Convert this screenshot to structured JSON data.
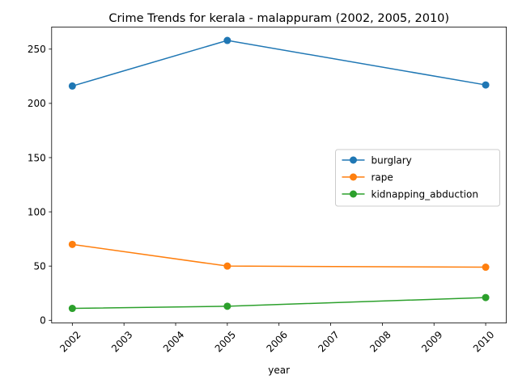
{
  "chart_data": {
    "type": "line",
    "title": "Crime Trends for kerala - malappuram (2002, 2005, 2010)",
    "xlabel": "year",
    "ylabel": "",
    "x": [
      2002,
      2005,
      2010
    ],
    "xticks": [
      "2002",
      "2003",
      "2004",
      "2005",
      "2006",
      "2007",
      "2008",
      "2009",
      "2010"
    ],
    "xlim": [
      2001.6,
      2010.4
    ],
    "yticks": [
      "0",
      "50",
      "100",
      "150",
      "200",
      "250"
    ],
    "ylim": [
      -2.4,
      270.4
    ],
    "grid": false,
    "legend_position": "center-right",
    "series": [
      {
        "name": "burglary",
        "color": "#1f77b4",
        "values": [
          216,
          258,
          217
        ]
      },
      {
        "name": "rape",
        "color": "#ff7f0e",
        "values": [
          70,
          50,
          49
        ]
      },
      {
        "name": "kidnapping_abduction",
        "color": "#2ca02c",
        "values": [
          11,
          13,
          21
        ]
      }
    ]
  }
}
